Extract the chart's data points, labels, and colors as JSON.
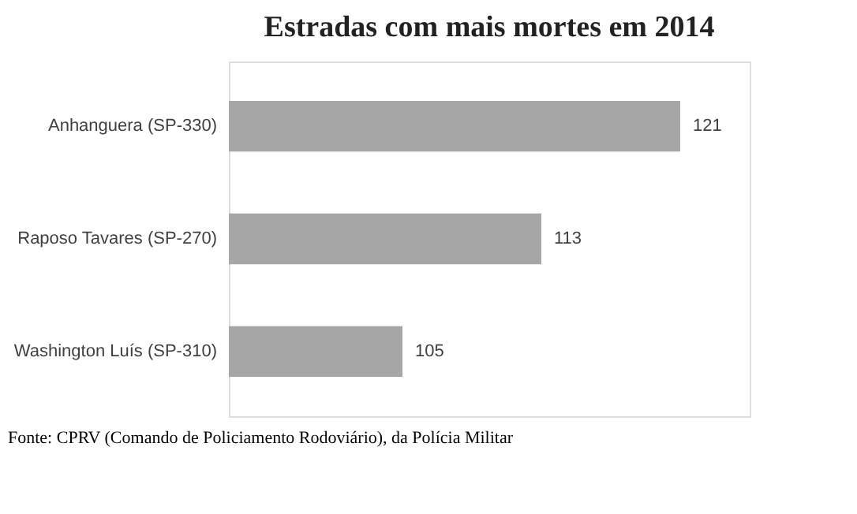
{
  "chart_data": {
    "type": "bar",
    "orientation": "horizontal",
    "title": "Estradas com mais mortes em 2014",
    "categories": [
      "Anhanguera (SP-330)",
      "Raposo Tavares (SP-270)",
      "Washington Luís (SP-310)"
    ],
    "values": [
      121,
      113,
      105
    ],
    "color": "#a6a6a6",
    "xlim": [
      95,
      125
    ],
    "data_labels": true,
    "tick_labels": "y",
    "grid": false,
    "annotations": [
      "Fonte: CPRV (Comando de Policiamento Rodoviário), da Polícia Militar"
    ]
  }
}
